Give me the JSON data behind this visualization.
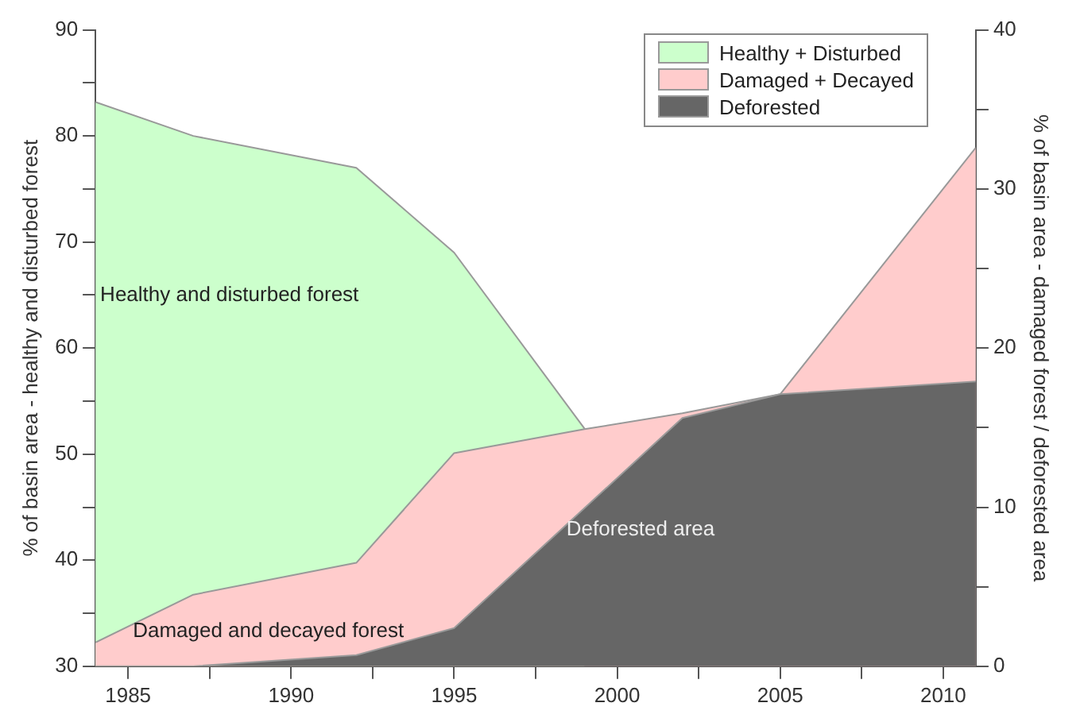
{
  "chart_data": {
    "type": "area",
    "xlabel": null,
    "ylabel": "% of basin area - healthy and disturbed forest",
    "y2label": "% of basin area - damaged forest / deforested area",
    "xlim": [
      1984,
      2011
    ],
    "xticks": [
      1985,
      {
        "value": 1987.5,
        "label": null
      },
      1990,
      {
        "value": 1992.5,
        "label": null
      },
      1995,
      {
        "value": 1997.5,
        "label": null
      },
      2000,
      {
        "value": 2002.5,
        "label": null
      },
      2005,
      {
        "value": 2007.5,
        "label": null
      },
      2010
    ],
    "ylim": [
      30,
      90
    ],
    "yticks": [
      30,
      {
        "value": 35,
        "label": null
      },
      40,
      {
        "value": 45,
        "label": null
      },
      50,
      {
        "value": 55,
        "label": null
      },
      60,
      {
        "value": 65,
        "label": null
      },
      70,
      {
        "value": 75,
        "label": null
      },
      80,
      {
        "value": 85,
        "label": null
      },
      90
    ],
    "y2lim": [
      0,
      40
    ],
    "y2ticks": [
      0,
      {
        "value": 5,
        "label": null
      },
      10,
      {
        "value": 15,
        "label": null
      },
      20,
      {
        "value": 25,
        "label": null
      },
      30,
      {
        "value": 35,
        "label": null
      },
      40
    ],
    "series": [
      {
        "name": "Healthy + Disturbed",
        "color": "#ccffcc",
        "x": [
          1984,
          1987,
          1992,
          1995,
          1999
        ],
        "values": [
          83.2,
          80,
          77,
          69,
          52.4
        ]
      },
      {
        "name": "Damaged + Decayed",
        "color": "#ffcccc",
        "axis": "y2",
        "x": [
          1984,
          1987,
          1992,
          1995,
          1999,
          2002,
          2005,
          2011
        ],
        "values": [
          1.5,
          4.5,
          6.5,
          13.4,
          14.9,
          15.9,
          17.1,
          32.6
        ]
      },
      {
        "name": "Deforested",
        "color": "#666666",
        "axis": "y2",
        "x": [
          1984,
          1987,
          1992,
          1995,
          2002,
          2005,
          2011
        ],
        "values": [
          0,
          0,
          0.7,
          2.4,
          15.6,
          17.1,
          17.9
        ]
      }
    ],
    "annotations": [
      {
        "text": "Healthy and disturbed forest",
        "x": 1984,
        "y": 65
      },
      {
        "text": "Damaged and decayed forest",
        "x": 1985,
        "y": 33.3
      },
      {
        "text": "Deforested area",
        "x": 1998.3,
        "y": 42.9
      }
    ],
    "legend": "top right",
    "grid": false
  }
}
